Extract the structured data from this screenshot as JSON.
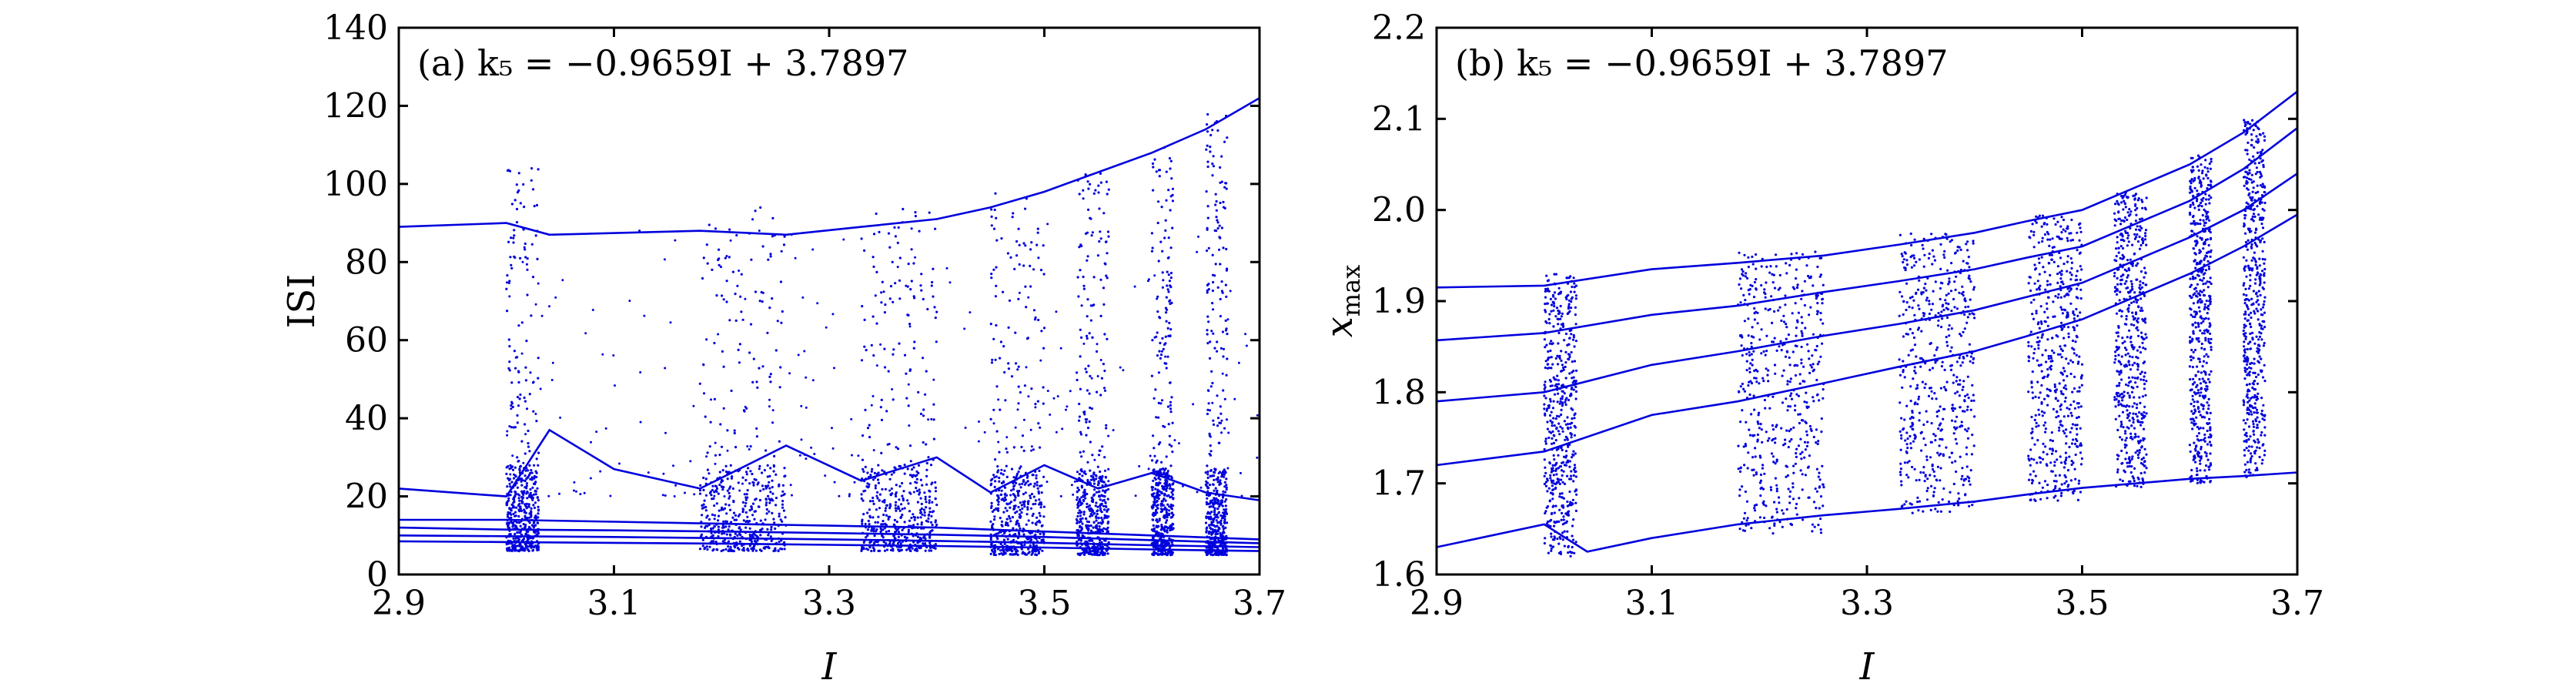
{
  "chart_data": [
    {
      "type": "scatter",
      "panel_label": "(a) k₅ = −0.9659I + 3.7897",
      "xlabel": "I",
      "ylabel": "ISI",
      "xlim": [
        2.9,
        3.7
      ],
      "ylim": [
        0,
        140
      ],
      "xticks": [
        2.9,
        3.1,
        3.3,
        3.5,
        3.7
      ],
      "yticks": [
        0,
        20,
        40,
        60,
        80,
        100,
        120,
        140
      ],
      "xtick_labels": [
        "2.9",
        "3.1",
        "3.3",
        "3.5",
        "3.7"
      ],
      "ytick_labels": [
        "0",
        "20",
        "40",
        "60",
        "80",
        "100",
        "120",
        "140"
      ],
      "color": "#0000dd",
      "grid": false,
      "series": [
        {
          "x": [
            2.9,
            3.0,
            3.04,
            3.18,
            3.26,
            3.33,
            3.4,
            3.45,
            3.5,
            3.55,
            3.6,
            3.65,
            3.7
          ],
          "y": [
            89,
            90,
            87,
            88,
            87,
            89,
            91,
            94,
            98,
            103,
            108,
            114,
            122
          ]
        },
        {
          "x": [
            2.9,
            3.0,
            3.04,
            3.1,
            3.18,
            3.26,
            3.33,
            3.4,
            3.45,
            3.5,
            3.55,
            3.6,
            3.65,
            3.7
          ],
          "y": [
            22,
            20,
            37,
            27,
            22,
            33,
            24,
            30,
            21,
            28,
            22,
            26,
            21,
            19
          ]
        },
        {
          "x": [
            2.9,
            3.0,
            3.1,
            3.2,
            3.3,
            3.4,
            3.5,
            3.6,
            3.7
          ],
          "y": [
            14,
            14,
            13.5,
            13,
            12.5,
            12,
            11,
            10,
            9
          ]
        },
        {
          "x": [
            2.9,
            3.0,
            3.1,
            3.2,
            3.3,
            3.4,
            3.5,
            3.6,
            3.7
          ],
          "y": [
            12,
            11.5,
            11.3,
            11,
            10.6,
            10.2,
            9.6,
            8.8,
            8
          ]
        },
        {
          "x": [
            2.9,
            3.0,
            3.1,
            3.2,
            3.3,
            3.4,
            3.5,
            3.6,
            3.7
          ],
          "y": [
            10,
            9.8,
            9.6,
            9.3,
            9,
            8.6,
            8.1,
            7.5,
            7
          ]
        },
        {
          "x": [
            2.9,
            3.0,
            3.1,
            3.2,
            3.3,
            3.4,
            3.5,
            3.6,
            3.7
          ],
          "y": [
            8.5,
            8.3,
            8.1,
            7.9,
            7.6,
            7.3,
            6.9,
            6.4,
            6
          ]
        }
      ],
      "chaotic_bands": [
        {
          "x": [
            3.0,
            3.03
          ],
          "y": [
            6,
            104
          ]
        },
        {
          "x": [
            3.18,
            3.26
          ],
          "y": [
            6,
            94
          ]
        },
        {
          "x": [
            3.33,
            3.4
          ],
          "y": [
            6,
            94
          ]
        },
        {
          "x": [
            3.45,
            3.5
          ],
          "y": [
            5,
            98
          ]
        },
        {
          "x": [
            3.53,
            3.56
          ],
          "y": [
            5,
            103
          ]
        },
        {
          "x": [
            3.6,
            3.62
          ],
          "y": [
            5,
            110
          ]
        },
        {
          "x": [
            3.65,
            3.67
          ],
          "y": [
            5,
            118
          ]
        }
      ]
    },
    {
      "type": "scatter",
      "panel_label": "(b) k₅ = −0.9659I + 3.7897",
      "xlabel": "I",
      "ylabel": "x_max",
      "xlim": [
        2.9,
        3.7
      ],
      "ylim": [
        1.6,
        2.2
      ],
      "xticks": [
        2.9,
        3.1,
        3.3,
        3.5,
        3.7
      ],
      "yticks": [
        1.6,
        1.7,
        1.8,
        1.9,
        2.0,
        2.1,
        2.2
      ],
      "xtick_labels": [
        "2.9",
        "3.1",
        "3.3",
        "3.5",
        "3.7"
      ],
      "ytick_labels": [
        "1.6",
        "1.7",
        "1.8",
        "1.9",
        "2.0",
        "2.1",
        "2.2"
      ],
      "color": "#0000dd",
      "grid": false,
      "series": [
        {
          "x": [
            2.9,
            3.0,
            3.1,
            3.18,
            3.26,
            3.33,
            3.4,
            3.45,
            3.5,
            3.55,
            3.6,
            3.65,
            3.7
          ],
          "y": [
            1.915,
            1.917,
            1.935,
            1.942,
            1.95,
            1.962,
            1.975,
            1.988,
            2.0,
            2.025,
            2.05,
            2.085,
            2.13
          ]
        },
        {
          "x": [
            2.9,
            3.0,
            3.1,
            3.18,
            3.26,
            3.33,
            3.4,
            3.45,
            3.5,
            3.55,
            3.6,
            3.65,
            3.7
          ],
          "y": [
            1.857,
            1.865,
            1.885,
            1.895,
            1.91,
            1.922,
            1.935,
            1.948,
            1.96,
            1.985,
            2.01,
            2.045,
            2.09
          ]
        },
        {
          "x": [
            2.9,
            3.0,
            3.1,
            3.18,
            3.26,
            3.33,
            3.4,
            3.45,
            3.5,
            3.55,
            3.6,
            3.65,
            3.7
          ],
          "y": [
            1.79,
            1.8,
            1.83,
            1.845,
            1.862,
            1.875,
            1.89,
            1.905,
            1.92,
            1.945,
            1.97,
            2.0,
            2.04
          ]
        },
        {
          "x": [
            2.9,
            3.0,
            3.1,
            3.18,
            3.26,
            3.33,
            3.4,
            3.45,
            3.5,
            3.55,
            3.6,
            3.65,
            3.7
          ],
          "y": [
            1.72,
            1.735,
            1.775,
            1.79,
            1.81,
            1.828,
            1.845,
            1.862,
            1.88,
            1.905,
            1.93,
            1.96,
            1.995
          ]
        },
        {
          "x": [
            2.9,
            3.0,
            3.04,
            3.1,
            3.18,
            3.26,
            3.33,
            3.4,
            3.45,
            3.5,
            3.55,
            3.6,
            3.65,
            3.7
          ],
          "y": [
            1.63,
            1.655,
            1.625,
            1.64,
            1.655,
            1.665,
            1.672,
            1.68,
            1.688,
            1.695,
            1.7,
            1.705,
            1.708,
            1.712
          ]
        }
      ],
      "chaotic_bands": [
        {
          "x": [
            3.0,
            3.03
          ],
          "y": [
            1.62,
            1.93
          ]
        },
        {
          "x": [
            3.18,
            3.26
          ],
          "y": [
            1.645,
            1.955
          ]
        },
        {
          "x": [
            3.33,
            3.4
          ],
          "y": [
            1.665,
            1.975
          ]
        },
        {
          "x": [
            3.45,
            3.5
          ],
          "y": [
            1.68,
            1.995
          ]
        },
        {
          "x": [
            3.53,
            3.56
          ],
          "y": [
            1.695,
            2.02
          ]
        },
        {
          "x": [
            3.6,
            3.62
          ],
          "y": [
            1.7,
            2.06
          ]
        },
        {
          "x": [
            3.65,
            3.67
          ],
          "y": [
            1.705,
            2.1
          ]
        }
      ]
    }
  ]
}
